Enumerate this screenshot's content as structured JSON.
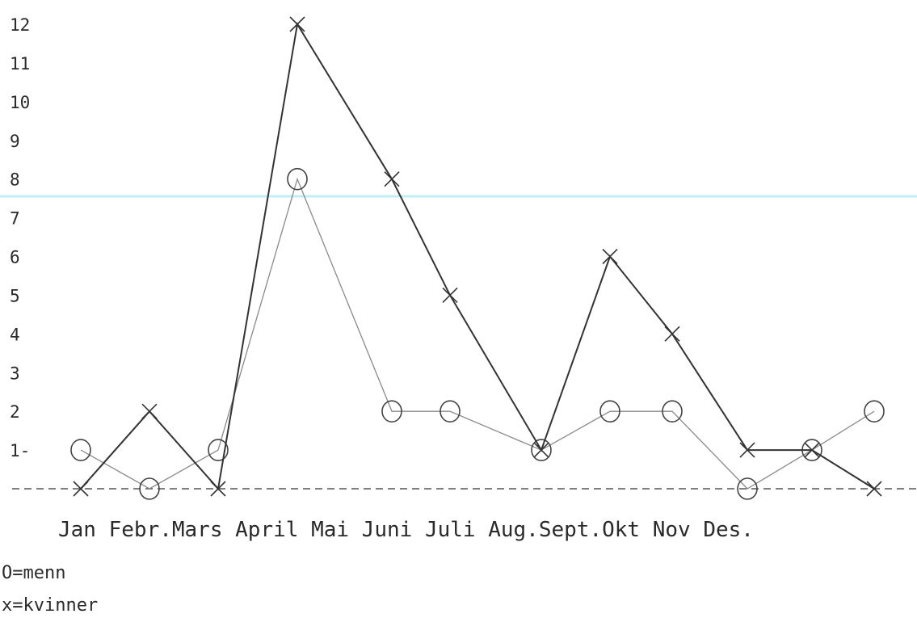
{
  "chart_data": {
    "type": "line",
    "categories": [
      "Jan",
      "Febr.",
      "Mars",
      "April",
      "Mai",
      "Juni",
      "Juli",
      "Aug.",
      "Sept.",
      "Okt",
      "Nov",
      "Des."
    ],
    "category_label_text": "Jan Febr.Mars April Mai Juni Juli Aug.Sept.Okt Nov Des.",
    "y_ticks": [
      "1-",
      "2",
      "3",
      "4",
      "5",
      "6",
      "7",
      "8",
      "9",
      "10",
      "11",
      "12"
    ],
    "ylim": [
      0,
      12
    ],
    "series": [
      {
        "name": "menn",
        "marker": "circle",
        "color": "#8a8a8a",
        "values": [
          1,
          0,
          1,
          8,
          2,
          2,
          1,
          2,
          2,
          0,
          1,
          2
        ]
      },
      {
        "name": "kvinner",
        "marker": "x",
        "color": "#333333",
        "values": [
          0,
          2,
          0,
          12,
          8,
          5,
          1,
          6,
          4,
          1,
          1,
          0
        ]
      }
    ],
    "legend": [
      "O=menn",
      "x=kvinner"
    ],
    "baseline": "dashed",
    "grid": false
  }
}
